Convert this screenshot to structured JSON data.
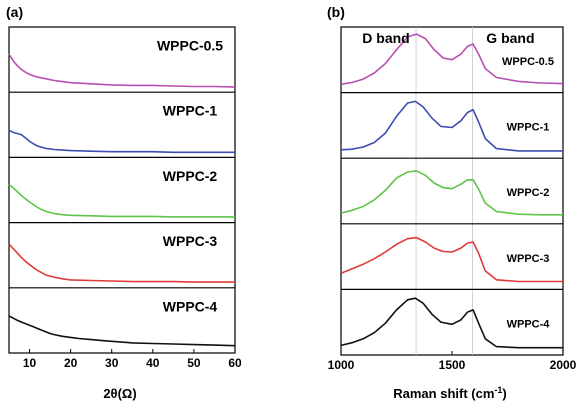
{
  "chart_data": [
    {
      "panel_label": "(a)",
      "type": "line",
      "layout": "stacked",
      "xlabel": "2θ(Ω)",
      "xlim": [
        5,
        60
      ],
      "xticks": [
        10,
        20,
        30,
        40,
        50,
        60
      ],
      "series": [
        {
          "name": "WPPC-0.5",
          "color": "#b84fb3",
          "x": [
            5,
            6,
            7,
            8,
            9,
            10,
            12,
            14,
            16,
            18,
            20,
            25,
            30,
            35,
            40,
            45,
            50,
            55,
            60
          ],
          "y": [
            0.62,
            0.5,
            0.41,
            0.34,
            0.29,
            0.25,
            0.2,
            0.17,
            0.14,
            0.12,
            0.1,
            0.08,
            0.06,
            0.05,
            0.05,
            0.04,
            0.03,
            0.03,
            0.02
          ]
        },
        {
          "name": "WPPC-1",
          "color": "#3c4db3",
          "x": [
            5,
            6,
            7,
            8,
            9,
            10,
            11,
            12,
            14,
            16,
            18,
            20,
            25,
            30,
            35,
            40,
            45,
            50,
            55,
            60
          ],
          "y": [
            0.42,
            0.38,
            0.36,
            0.34,
            0.28,
            0.22,
            0.17,
            0.13,
            0.09,
            0.07,
            0.06,
            0.05,
            0.04,
            0.03,
            0.03,
            0.03,
            0.02,
            0.02,
            0.02,
            0.02
          ]
        },
        {
          "name": "WPPC-2",
          "color": "#5ec44a",
          "x": [
            5,
            6,
            7,
            8,
            9,
            10,
            11,
            12,
            13,
            14,
            16,
            18,
            20,
            25,
            30,
            35,
            40,
            45,
            50,
            55,
            60
          ],
          "y": [
            0.62,
            0.56,
            0.49,
            0.42,
            0.36,
            0.3,
            0.25,
            0.2,
            0.16,
            0.13,
            0.09,
            0.07,
            0.06,
            0.05,
            0.04,
            0.04,
            0.04,
            0.03,
            0.03,
            0.03,
            0.03
          ]
        },
        {
          "name": "WPPC-3",
          "color": "#e03a3a",
          "x": [
            5,
            6,
            7,
            8,
            9,
            10,
            11,
            12,
            13,
            14,
            16,
            18,
            20,
            25,
            30,
            35,
            40,
            45,
            50,
            55,
            60
          ],
          "y": [
            0.72,
            0.64,
            0.56,
            0.48,
            0.41,
            0.35,
            0.29,
            0.24,
            0.2,
            0.16,
            0.12,
            0.09,
            0.07,
            0.06,
            0.05,
            0.04,
            0.04,
            0.04,
            0.03,
            0.03,
            0.03
          ]
        },
        {
          "name": "WPPC-4",
          "color": "#111111",
          "x": [
            5,
            6,
            7,
            8,
            9,
            10,
            11,
            12,
            13,
            14,
            15,
            16,
            18,
            20,
            22,
            25,
            28,
            30,
            35,
            40,
            45,
            50,
            55,
            60
          ],
          "y": [
            0.6,
            0.56,
            0.52,
            0.49,
            0.46,
            0.43,
            0.4,
            0.37,
            0.34,
            0.31,
            0.28,
            0.26,
            0.23,
            0.21,
            0.19,
            0.17,
            0.15,
            0.14,
            0.11,
            0.1,
            0.09,
            0.08,
            0.07,
            0.06
          ]
        }
      ]
    },
    {
      "panel_label": "(b)",
      "type": "line",
      "layout": "stacked",
      "xlabel": "Raman shift (cm",
      "xlabel_sup": "-1",
      "xlabel_end": ")",
      "xlim": [
        1000,
        2000
      ],
      "xticks": [
        1000,
        1500,
        2000
      ],
      "band_labels": [
        {
          "text": "D band",
          "x": 1338
        },
        {
          "text": "G band",
          "x": 1592
        }
      ],
      "series": [
        {
          "name": "WPPC-0.5",
          "color": "#b84fb3",
          "x": [
            1000,
            1050,
            1100,
            1150,
            1200,
            1250,
            1300,
            1340,
            1380,
            1420,
            1460,
            1500,
            1540,
            1570,
            1595,
            1620,
            1650,
            1700,
            1800,
            1900,
            2000
          ],
          "y": [
            0.08,
            0.11,
            0.17,
            0.28,
            0.45,
            0.7,
            0.93,
            0.98,
            0.9,
            0.7,
            0.55,
            0.52,
            0.62,
            0.76,
            0.8,
            0.62,
            0.36,
            0.2,
            0.13,
            0.1,
            0.09
          ]
        },
        {
          "name": "WPPC-1",
          "color": "#3c4db3",
          "x": [
            1000,
            1050,
            1100,
            1150,
            1200,
            1250,
            1300,
            1335,
            1370,
            1410,
            1450,
            1500,
            1540,
            1570,
            1595,
            1620,
            1650,
            1700,
            1800,
            1900,
            2000
          ],
          "y": [
            0.08,
            0.09,
            0.13,
            0.21,
            0.38,
            0.68,
            0.92,
            0.95,
            0.85,
            0.65,
            0.5,
            0.48,
            0.6,
            0.75,
            0.8,
            0.58,
            0.28,
            0.1,
            0.06,
            0.06,
            0.06
          ]
        },
        {
          "name": "WPPC-2",
          "color": "#5ec44a",
          "x": [
            1000,
            1050,
            1100,
            1150,
            1200,
            1250,
            1300,
            1340,
            1380,
            1420,
            1460,
            1500,
            1540,
            1570,
            1595,
            1620,
            1650,
            1700,
            1800,
            1900,
            2000
          ],
          "y": [
            0.12,
            0.17,
            0.24,
            0.36,
            0.53,
            0.75,
            0.86,
            0.88,
            0.8,
            0.66,
            0.58,
            0.56,
            0.64,
            0.72,
            0.72,
            0.55,
            0.3,
            0.15,
            0.1,
            0.09,
            0.09
          ]
        },
        {
          "name": "WPPC-3",
          "color": "#e03a3a",
          "x": [
            1000,
            1050,
            1100,
            1150,
            1200,
            1250,
            1300,
            1340,
            1380,
            1420,
            1460,
            1500,
            1540,
            1570,
            1595,
            1620,
            1650,
            1700,
            1800,
            1900,
            2000
          ],
          "y": [
            0.22,
            0.3,
            0.38,
            0.48,
            0.6,
            0.74,
            0.84,
            0.86,
            0.78,
            0.67,
            0.61,
            0.6,
            0.67,
            0.76,
            0.78,
            0.58,
            0.26,
            0.1,
            0.07,
            0.07,
            0.07
          ]
        },
        {
          "name": "WPPC-4",
          "color": "#111111",
          "x": [
            1000,
            1050,
            1100,
            1150,
            1200,
            1250,
            1300,
            1335,
            1370,
            1410,
            1450,
            1500,
            1540,
            1570,
            1595,
            1620,
            1650,
            1700,
            1800,
            1900,
            2000
          ],
          "y": [
            0.1,
            0.15,
            0.22,
            0.33,
            0.5,
            0.74,
            0.92,
            0.95,
            0.86,
            0.66,
            0.52,
            0.48,
            0.56,
            0.7,
            0.74,
            0.5,
            0.22,
            0.08,
            0.06,
            0.06,
            0.06
          ]
        }
      ]
    }
  ]
}
